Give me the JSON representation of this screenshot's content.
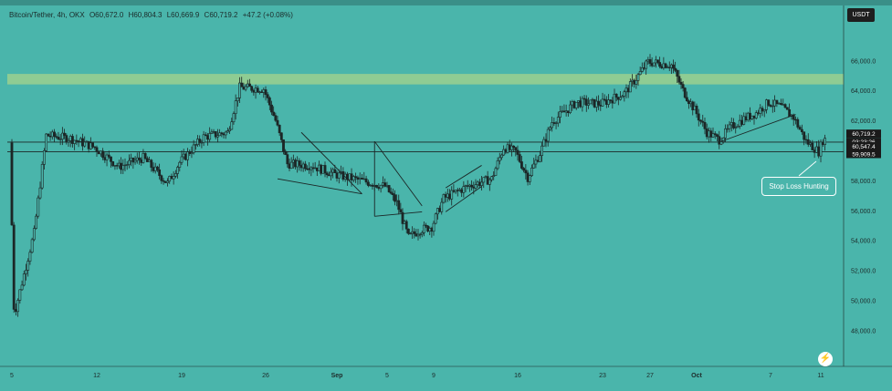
{
  "header": {
    "symbol": "Bitcoin/Tether, 4h, OKX",
    "open": "O60,672.0",
    "high": "H60,804.3",
    "low": "L60,669.9",
    "close": "C60,719.2",
    "change": "+47.2 (+0.08%)"
  },
  "currency_button": "USDT",
  "colors": {
    "background": "#4ab5ab",
    "candle": "#1c2626",
    "zone": "#9bd08e",
    "level_line": "#1c2626",
    "callout_border": "#ffffff"
  },
  "annotation": {
    "text": "Stop Loss Hunting"
  },
  "logo_icon": "tradingview-lightning-icon",
  "price_labels": {
    "last_price": "60,719.2",
    "countdown": "03:23:26",
    "level_upper": "60,547.4",
    "level_lower": "59,909.5"
  },
  "chart_data": {
    "type": "candlestick",
    "title": "Bitcoin/Tether, 4h, OKX",
    "ylim": [
      46500,
      67600
    ],
    "y_ticks": [
      48000,
      50000,
      52000,
      54000,
      56000,
      58000,
      60000,
      62000,
      64000,
      66000
    ],
    "y_tick_labels": [
      "48,000.0",
      "50,000.0",
      "52,000.0",
      "54,000.0",
      "56,000.0",
      "58,000.0",
      "60,000.0",
      "62,000.0",
      "64,000.0",
      "66,000.0"
    ],
    "x_tick_labels": [
      "5",
      "12",
      "19",
      "26",
      "Sep",
      "5",
      "9",
      "16",
      "23",
      "27",
      "Oct",
      "7",
      "11"
    ],
    "x_tick_dates": [
      "2024-08-05",
      "2024-08-12",
      "2024-08-19",
      "2024-08-26",
      "2024-09-01",
      "2024-09-05",
      "2024-09-09",
      "2024-09-16",
      "2024-09-23",
      "2024-09-27",
      "2024-10-01",
      "2024-10-07",
      "2024-10-11"
    ],
    "resistance_zone": [
      64400,
      65100
    ],
    "levels": [
      60719.2,
      60547.4,
      59909.5
    ],
    "grid": false,
    "price_path": [
      [
        "2024-08-05",
        60500
      ],
      [
        "2024-08-05",
        49000
      ],
      [
        "2024-08-07",
        54500
      ],
      [
        "2024-08-08",
        61000
      ],
      [
        "2024-08-10",
        60800
      ],
      [
        "2024-08-12",
        60200
      ],
      [
        "2024-08-14",
        58900
      ],
      [
        "2024-08-16",
        59500
      ],
      [
        "2024-08-18",
        57800
      ],
      [
        "2024-08-19",
        59200
      ],
      [
        "2024-08-21",
        60900
      ],
      [
        "2024-08-23",
        61200
      ],
      [
        "2024-08-24",
        64200
      ],
      [
        "2024-08-26",
        64100
      ],
      [
        "2024-08-27",
        62000
      ],
      [
        "2024-08-28",
        59100
      ],
      [
        "2024-08-30",
        59000
      ],
      [
        "2024-09-01",
        58400
      ],
      [
        "2024-09-03",
        58000
      ],
      [
        "2024-09-05",
        57600
      ],
      [
        "2024-09-06",
        56500
      ],
      [
        "2024-09-07",
        54200
      ],
      [
        "2024-09-08",
        54700
      ],
      [
        "2024-09-09",
        54900
      ],
      [
        "2024-09-10",
        56800
      ],
      [
        "2024-09-12",
        57600
      ],
      [
        "2024-09-14",
        58100
      ],
      [
        "2024-09-15",
        60200
      ],
      [
        "2024-09-16",
        59900
      ],
      [
        "2024-09-17",
        58200
      ],
      [
        "2024-09-18",
        59800
      ],
      [
        "2024-09-19",
        61900
      ],
      [
        "2024-09-21",
        63200
      ],
      [
        "2024-09-23",
        63100
      ],
      [
        "2024-09-25",
        63800
      ],
      [
        "2024-09-26",
        64800
      ],
      [
        "2024-09-27",
        65900
      ],
      [
        "2024-09-29",
        65700
      ],
      [
        "2024-09-30",
        64000
      ],
      [
        "2024-10-01",
        62700
      ],
      [
        "2024-10-02",
        61200
      ],
      [
        "2024-10-03",
        60700
      ],
      [
        "2024-10-04",
        61600
      ],
      [
        "2024-10-05",
        62100
      ],
      [
        "2024-10-06",
        62500
      ],
      [
        "2024-10-07",
        63200
      ],
      [
        "2024-10-08",
        62900
      ],
      [
        "2024-10-09",
        62200
      ],
      [
        "2024-10-10",
        60600
      ],
      [
        "2024-10-11",
        59909.5
      ],
      [
        "2024-10-11",
        60719.2
      ]
    ]
  }
}
